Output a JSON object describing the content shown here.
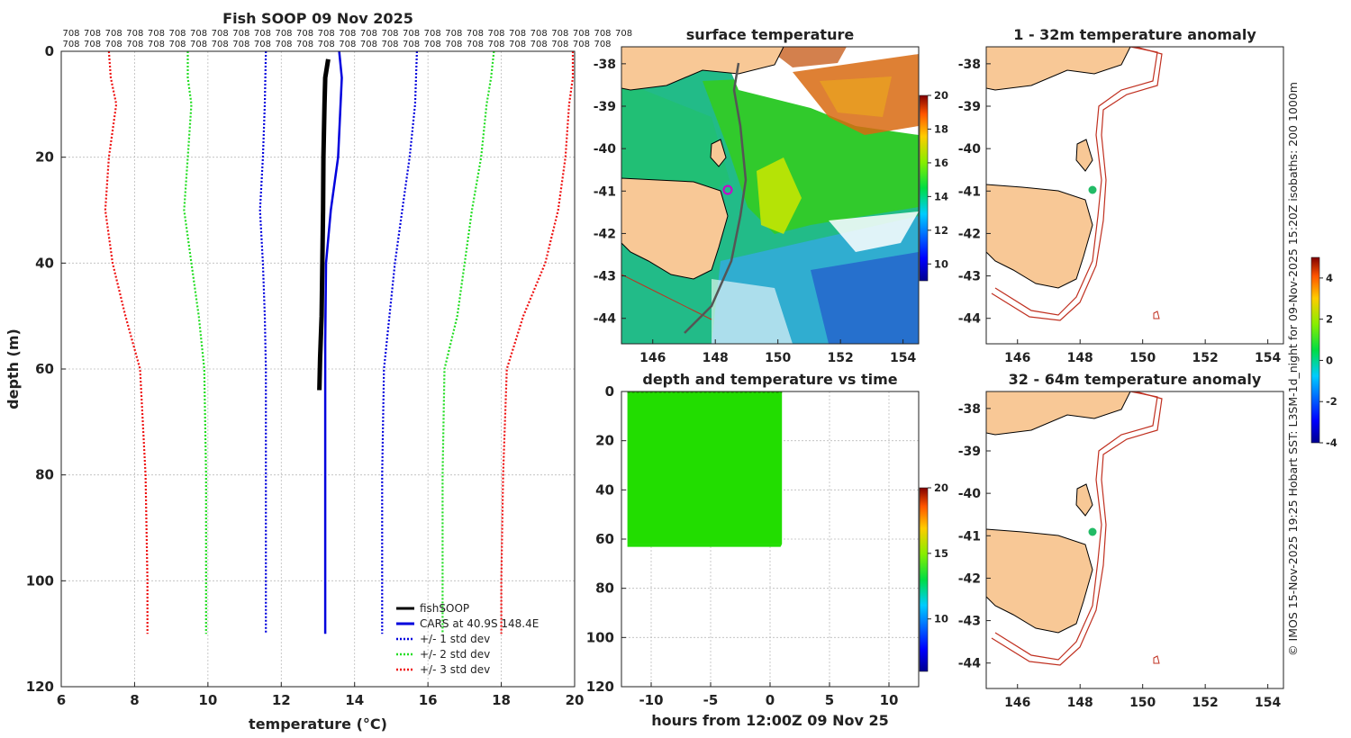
{
  "chart_data": [
    {
      "id": "profile",
      "type": "line",
      "title": "Fish SOOP 09 Nov 2025",
      "xlabel": "temperature (°C)",
      "ylabel": "depth (m)",
      "xlim": [
        6,
        20
      ],
      "ylim": [
        0,
        120
      ],
      "xticks": [
        6,
        8,
        10,
        12,
        14,
        16,
        18,
        20
      ],
      "yticks": [
        0,
        20,
        40,
        60,
        80,
        100,
        120
      ],
      "grid": true,
      "header_labels": [
        "708",
        "708",
        "708",
        "708",
        "708",
        "708",
        "708",
        "708",
        "708",
        "708",
        "708",
        "708",
        "708",
        "708",
        "708",
        "708",
        "708",
        "708",
        "708",
        "708",
        "708",
        "708",
        "708",
        "708",
        "708",
        "708",
        "708",
        "708",
        "708",
        "708",
        "708",
        "708",
        "708",
        "708",
        "708",
        "708",
        "708",
        "708",
        "708",
        "708",
        "708",
        "708",
        "708",
        "708",
        "708",
        "708",
        "708",
        "708",
        "708",
        "708",
        "708",
        "708",
        "708"
      ],
      "series": [
        {
          "name": "fishSOOP",
          "color": "#000000",
          "dash": "solid",
          "width": 5,
          "points": [
            [
              13.28,
              1.5
            ],
            [
              13.2,
              5
            ],
            [
              13.18,
              10
            ],
            [
              13.15,
              20
            ],
            [
              13.14,
              30
            ],
            [
              13.12,
              40
            ],
            [
              13.1,
              50
            ],
            [
              13.06,
              58
            ],
            [
              13.04,
              64
            ]
          ]
        },
        {
          "name": "CARS at 40.9S 148.4E",
          "color": "#0000dd",
          "dash": "solid",
          "width": 2.5,
          "points": [
            [
              13.58,
              0
            ],
            [
              13.65,
              5
            ],
            [
              13.55,
              20
            ],
            [
              13.35,
              30
            ],
            [
              13.22,
              40
            ],
            [
              13.2,
              55
            ],
            [
              13.2,
              60
            ],
            [
              13.2,
              80
            ],
            [
              13.2,
              100
            ],
            [
              13.2,
              110
            ]
          ]
        },
        {
          "name": "+/- 1 std dev",
          "color": "#0000dd",
          "dash": "dot",
          "width": 2.2,
          "points": [
            [
              11.58,
              0
            ],
            [
              11.55,
              10
            ],
            [
              11.5,
              20
            ],
            [
              11.42,
              30
            ],
            [
              11.5,
              40
            ],
            [
              11.55,
              50
            ],
            [
              11.58,
              60
            ],
            [
              11.58,
              80
            ],
            [
              11.58,
              100
            ],
            [
              11.58,
              110
            ]
          ]
        },
        {
          "name": "+/- 1 std dev (upper)",
          "color": "#0000dd",
          "dash": "dot",
          "width": 2.2,
          "legend": false,
          "points": [
            [
              15.7,
              0
            ],
            [
              15.65,
              10
            ],
            [
              15.5,
              20
            ],
            [
              15.3,
              30
            ],
            [
              15.1,
              40
            ],
            [
              14.95,
              50
            ],
            [
              14.8,
              60
            ],
            [
              14.75,
              80
            ],
            [
              14.75,
              100
            ],
            [
              14.75,
              110
            ]
          ]
        },
        {
          "name": "+/- 2 std dev",
          "color": "#22dd22",
          "dash": "dot",
          "width": 2.2,
          "points": [
            [
              9.45,
              0
            ],
            [
              9.45,
              5
            ],
            [
              9.55,
              10
            ],
            [
              9.45,
              20
            ],
            [
              9.35,
              30
            ],
            [
              9.55,
              40
            ],
            [
              9.75,
              50
            ],
            [
              9.9,
              60
            ],
            [
              9.95,
              80
            ],
            [
              9.95,
              100
            ],
            [
              9.95,
              110
            ]
          ]
        },
        {
          "name": "+/- 2 std dev (upper)",
          "color": "#22dd22",
          "dash": "dot",
          "width": 2.2,
          "legend": false,
          "points": [
            [
              17.8,
              0
            ],
            [
              17.72,
              5
            ],
            [
              17.6,
              10
            ],
            [
              17.45,
              20
            ],
            [
              17.2,
              30
            ],
            [
              17.0,
              40
            ],
            [
              16.8,
              50
            ],
            [
              16.45,
              60
            ],
            [
              16.4,
              80
            ],
            [
              16.4,
              100
            ],
            [
              16.4,
              110
            ]
          ]
        },
        {
          "name": "+/- 3 std dev",
          "color": "#ee1111",
          "dash": "dot",
          "width": 2.2,
          "points": [
            [
              7.3,
              0
            ],
            [
              7.35,
              5
            ],
            [
              7.5,
              10
            ],
            [
              7.3,
              20
            ],
            [
              7.2,
              30
            ],
            [
              7.4,
              40
            ],
            [
              7.75,
              50
            ],
            [
              8.15,
              60
            ],
            [
              8.3,
              80
            ],
            [
              8.35,
              100
            ],
            [
              8.35,
              110
            ]
          ]
        },
        {
          "name": "+/- 3 std dev (upper)",
          "color": "#ee1111",
          "dash": "dot",
          "width": 2.2,
          "legend": false,
          "points": [
            [
              19.95,
              0
            ],
            [
              19.95,
              5
            ],
            [
              19.85,
              10
            ],
            [
              19.75,
              20
            ],
            [
              19.55,
              30
            ],
            [
              19.2,
              40
            ],
            [
              18.6,
              50
            ],
            [
              18.15,
              60
            ],
            [
              18.05,
              80
            ],
            [
              18.0,
              100
            ],
            [
              18.0,
              110
            ]
          ]
        }
      ]
    },
    {
      "id": "surface",
      "type": "heatmap",
      "title": "surface temperature",
      "xlim": [
        145,
        154.5
      ],
      "ylim": [
        -44.6,
        -37.6
      ],
      "xticks": [
        146,
        148,
        150,
        152,
        154
      ],
      "yticks": [
        -38,
        -39,
        -40,
        -41,
        -42,
        -43,
        -44
      ],
      "colorbar": {
        "ticks": [
          10,
          12,
          14,
          16,
          18,
          20
        ],
        "range": [
          9,
          20
        ]
      },
      "marker": {
        "lon": 148.4,
        "lat": -40.9
      }
    },
    {
      "id": "depthtime",
      "type": "scatter",
      "title": "depth and temperature vs time",
      "xlabel": "hours from 12:00Z 09 Nov 25",
      "xlim": [
        -12.5,
        12.5
      ],
      "ylim": [
        0,
        120
      ],
      "xticks": [
        -10,
        -5,
        0,
        5,
        10
      ],
      "yticks": [
        0,
        20,
        40,
        60,
        80,
        100,
        120
      ],
      "colorbar": {
        "ticks": [
          10,
          15,
          20
        ],
        "range": [
          6,
          20
        ]
      },
      "block": {
        "x_start": -12,
        "x_end": 1,
        "depth_max": 62,
        "temperature": 13.2
      }
    },
    {
      "id": "anom1",
      "type": "map",
      "title": "1 - 32m temperature anomaly",
      "xlim": [
        145,
        154.5
      ],
      "ylim": [
        -44.6,
        -37.6
      ],
      "xticks": [
        146,
        148,
        150,
        152,
        154
      ],
      "yticks": [
        -38,
        -39,
        -40,
        -41,
        -42,
        -43,
        -44
      ],
      "marker": {
        "lon": 148.4,
        "lat": -40.9
      }
    },
    {
      "id": "anom2",
      "type": "map",
      "title": "32 - 64m temperature anomaly",
      "xlim": [
        145,
        154.5
      ],
      "ylim": [
        -44.6,
        -37.6
      ],
      "xticks": [
        146,
        148,
        150,
        152,
        154
      ],
      "yticks": [
        -38,
        -39,
        -40,
        -41,
        -42,
        -43,
        -44
      ],
      "marker": {
        "lon": 148.4,
        "lat": -40.9
      }
    },
    {
      "id": "anomcb",
      "type": "colorbar",
      "ticks": [
        4,
        2,
        0,
        -2,
        -4
      ],
      "range": [
        -4,
        5
      ]
    }
  ],
  "footer_note": "© IMOS 15-Nov-2025 19:25 Hobart SST: L3SM-1d_night for 09-Nov-2025 15:20Z isobaths: 200  1000m",
  "colors": {
    "land": "#f8c896",
    "isobath": "#c03020",
    "marker_track": "#cc00cc",
    "marker_anom": "#22bb66"
  }
}
